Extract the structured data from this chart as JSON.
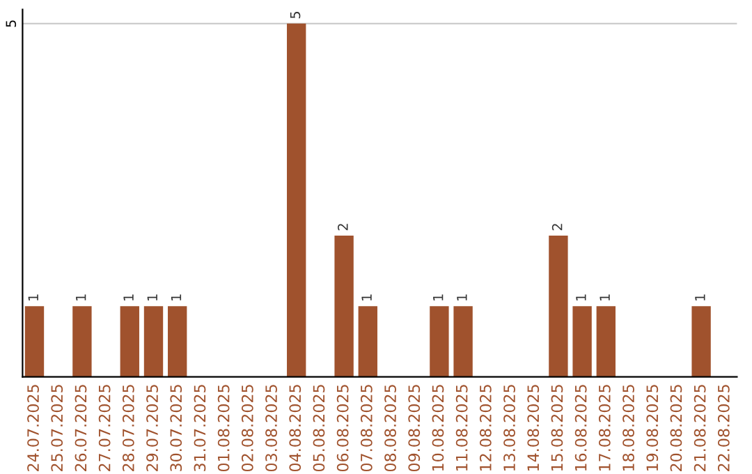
{
  "chart_data": {
    "type": "bar",
    "categories": [
      "24.07.2025",
      "25.07.2025",
      "26.07.2025",
      "27.07.2025",
      "28.07.2025",
      "29.07.2025",
      "30.07.2025",
      "31.07.2025",
      "01.08.2025",
      "02.08.2025",
      "03.08.2025",
      "04.08.2025",
      "05.08.2025",
      "06.08.2025",
      "07.08.2025",
      "08.08.2025",
      "09.08.2025",
      "10.08.2025",
      "11.08.2025",
      "12.08.2025",
      "13.08.2025",
      "14.08.2025",
      "15.08.2025",
      "16.08.2025",
      "17.08.2025",
      "18.08.2025",
      "19.08.2025",
      "20.08.2025",
      "21.08.2025",
      "22.08.2025"
    ],
    "values": [
      1,
      0,
      1,
      0,
      1,
      1,
      1,
      0,
      0,
      0,
      0,
      5,
      0,
      2,
      1,
      0,
      0,
      1,
      1,
      0,
      0,
      0,
      2,
      1,
      1,
      0,
      0,
      0,
      1,
      0
    ],
    "value_labels": [
      "1",
      null,
      "1",
      null,
      "1",
      "1",
      "1",
      null,
      null,
      null,
      null,
      "5",
      null,
      "2",
      "1",
      null,
      null,
      "1",
      "1",
      null,
      null,
      null,
      "2",
      "1",
      "1",
      null,
      null,
      null,
      "1",
      null
    ],
    "color": "#a0522d",
    "ylim": [
      0,
      5.2
    ],
    "yticks": [
      5
    ],
    "grid": "y",
    "legend": false
  }
}
